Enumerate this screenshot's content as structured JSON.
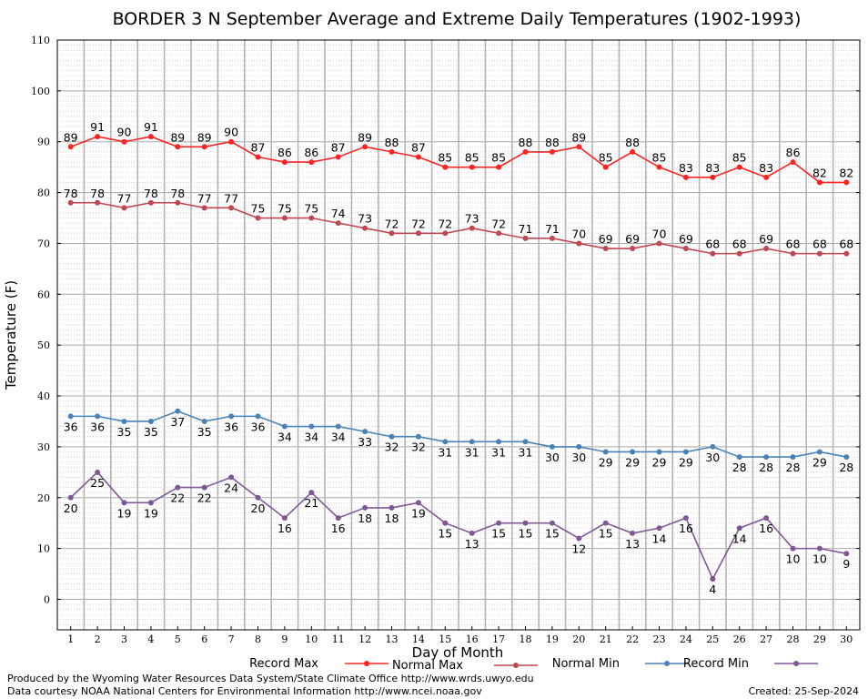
{
  "chart_data": {
    "type": "line",
    "title": "BORDER 3 N September Average and Extreme Daily Temperatures (1902-1993)",
    "xlabel": "Day of Month",
    "ylabel": "Temperature (F)",
    "x": [
      1,
      2,
      3,
      4,
      5,
      6,
      7,
      8,
      9,
      10,
      11,
      12,
      13,
      14,
      15,
      16,
      17,
      18,
      19,
      20,
      21,
      22,
      23,
      24,
      25,
      26,
      27,
      28,
      29,
      30
    ],
    "xlim": [
      0.5,
      30.5
    ],
    "ylim": [
      -6,
      110
    ],
    "yticks": [
      0,
      10,
      20,
      30,
      40,
      50,
      60,
      70,
      80,
      90,
      100,
      110
    ],
    "grid": true,
    "legend_position": "bottom",
    "series": [
      {
        "name": "Record Max",
        "color": "#ff2222",
        "values": [
          89,
          91,
          90,
          91,
          89,
          89,
          90,
          87,
          86,
          86,
          87,
          89,
          88,
          87,
          85,
          85,
          85,
          88,
          88,
          89,
          85,
          88,
          85,
          83,
          83,
          85,
          83,
          86,
          82,
          82
        ],
        "label_side": "above"
      },
      {
        "name": "Normal Max",
        "color": "#c0464f",
        "values": [
          78,
          78,
          77,
          78,
          78,
          77,
          77,
          75,
          75,
          75,
          74,
          73,
          72,
          72,
          72,
          73,
          72,
          71,
          71,
          70,
          69,
          69,
          70,
          69,
          68,
          68,
          69,
          68,
          68,
          68
        ],
        "label_side": "above"
      },
      {
        "name": "Normal Min",
        "color": "#4a82b8",
        "values": [
          36,
          36,
          35,
          35,
          37,
          35,
          36,
          36,
          34,
          34,
          34,
          33,
          32,
          32,
          31,
          31,
          31,
          31,
          30,
          30,
          29,
          29,
          29,
          29,
          30,
          28,
          28,
          28,
          29,
          28
        ],
        "label_side": "below"
      },
      {
        "name": "Record Min",
        "color": "#7f5796",
        "values": [
          20,
          25,
          19,
          19,
          22,
          22,
          24,
          20,
          16,
          21,
          16,
          18,
          18,
          19,
          15,
          13,
          15,
          15,
          15,
          12,
          15,
          13,
          14,
          16,
          4,
          14,
          16,
          10,
          10,
          9
        ],
        "label_side": "below"
      }
    ]
  },
  "footer": {
    "produced_by": "Produced by the Wyoming Water Resources Data System/State Climate Office http://www.wrds.uwyo.edu",
    "data_courtesy": "Data courtesy NOAA National Centers for Environmental Information http://www.ncei.noaa.gov",
    "created": "Created:  25-Sep-2024"
  }
}
